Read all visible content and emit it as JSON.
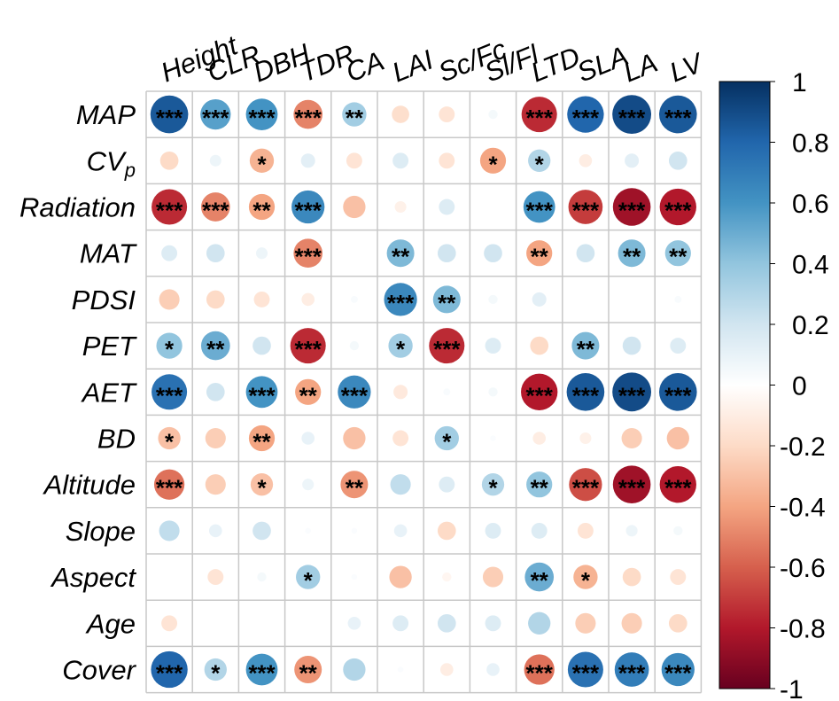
{
  "chart_data": {
    "type": "heatmap",
    "style": "circle-correlation-matrix",
    "columns": [
      "Height",
      "CLR",
      "DBH",
      "TDR",
      "CA",
      "LAI",
      "Sc/Fc",
      "Sl/Fl",
      "LTD",
      "SLA",
      "LA",
      "LV"
    ],
    "rows": [
      "MAP",
      "CVp",
      "Radiation",
      "MAT",
      "PDSI",
      "PET",
      "AET",
      "BD",
      "Altitude",
      "Slope",
      "Aspect",
      "Age",
      "Cover"
    ],
    "row_label_parts": [
      [
        "MAP",
        ""
      ],
      [
        "CV",
        "p"
      ],
      [
        "Radiation",
        ""
      ],
      [
        "MAT",
        ""
      ],
      [
        "PDSI",
        ""
      ],
      [
        "PET",
        ""
      ],
      [
        "AET",
        ""
      ],
      [
        "BD",
        ""
      ],
      [
        "Altitude",
        ""
      ],
      [
        "Slope",
        ""
      ],
      [
        "Aspect",
        ""
      ],
      [
        "Age",
        ""
      ],
      [
        "Cover",
        ""
      ]
    ],
    "values": [
      [
        0.85,
        0.55,
        0.6,
        -0.5,
        0.35,
        -0.18,
        -0.15,
        0.05,
        -0.75,
        0.8,
        0.9,
        0.85
      ],
      [
        -0.2,
        0.08,
        -0.35,
        0.12,
        -0.15,
        0.15,
        -0.15,
        -0.4,
        0.3,
        -0.1,
        0.12,
        0.2
      ],
      [
        -0.75,
        -0.5,
        -0.4,
        0.65,
        -0.3,
        -0.08,
        0.15,
        0.0,
        0.6,
        -0.7,
        -0.85,
        -0.8
      ],
      [
        0.15,
        0.2,
        0.08,
        -0.5,
        0.0,
        0.45,
        0.2,
        0.2,
        -0.4,
        0.2,
        0.45,
        0.4
      ],
      [
        -0.25,
        -0.2,
        -0.15,
        -0.1,
        0.03,
        0.65,
        0.45,
        0.05,
        0.12,
        0.0,
        0.0,
        0.03
      ],
      [
        0.4,
        0.5,
        0.2,
        -0.75,
        0.05,
        0.35,
        -0.75,
        0.15,
        -0.2,
        0.45,
        0.2,
        0.15
      ],
      [
        0.75,
        0.2,
        0.6,
        -0.4,
        0.65,
        -0.12,
        0.03,
        0.05,
        -0.8,
        0.85,
        0.9,
        0.85
      ],
      [
        -0.3,
        -0.25,
        -0.4,
        0.1,
        -0.3,
        -0.15,
        0.35,
        0.02,
        -0.1,
        -0.08,
        -0.25,
        -0.3
      ],
      [
        -0.55,
        -0.25,
        -0.3,
        0.08,
        -0.45,
        0.25,
        0.15,
        0.3,
        0.4,
        -0.65,
        -0.85,
        -0.8
      ],
      [
        0.25,
        0.1,
        0.2,
        0.02,
        0.02,
        0.1,
        -0.2,
        0.15,
        0.15,
        -0.15,
        0.08,
        0.05
      ],
      [
        0.0,
        -0.15,
        0.05,
        0.35,
        0.02,
        -0.3,
        -0.05,
        -0.25,
        0.5,
        -0.35,
        -0.2,
        -0.15
      ],
      [
        -0.15,
        0.0,
        0.0,
        0.0,
        0.1,
        0.15,
        0.2,
        0.15,
        0.3,
        -0.25,
        -0.25,
        -0.2
      ],
      [
        0.8,
        0.3,
        0.6,
        -0.45,
        0.3,
        0.02,
        -0.1,
        0.1,
        -0.55,
        0.75,
        0.7,
        0.65
      ]
    ],
    "significance": [
      [
        "***",
        "***",
        "***",
        "***",
        "**",
        "",
        "",
        "",
        "***",
        "***",
        "***",
        "***"
      ],
      [
        "",
        "",
        "*",
        "",
        "",
        "",
        "",
        "*",
        "*",
        "",
        "",
        ""
      ],
      [
        "***",
        "***",
        "**",
        "***",
        "",
        "",
        "",
        "",
        "***",
        "***",
        "***",
        "***"
      ],
      [
        "",
        "",
        "",
        "***",
        "",
        "**",
        "",
        "",
        "**",
        "",
        "**",
        "**"
      ],
      [
        "",
        "",
        "",
        "",
        "",
        "***",
        "**",
        "",
        "",
        "",
        "",
        ""
      ],
      [
        "*",
        "**",
        "",
        "***",
        "",
        "*",
        "***",
        "",
        "",
        "**",
        "",
        ""
      ],
      [
        "***",
        "",
        "***",
        "**",
        "***",
        "",
        "",
        "",
        "***",
        "***",
        "***",
        "***"
      ],
      [
        "*",
        "",
        "**",
        "",
        "",
        "",
        "*",
        "",
        "",
        "",
        "",
        ""
      ],
      [
        "***",
        "",
        "*",
        "",
        "**",
        "",
        "",
        "*",
        "**",
        "***",
        "***",
        "***"
      ],
      [
        "",
        "",
        "",
        "",
        "",
        "",
        "",
        "",
        "",
        "",
        "",
        ""
      ],
      [
        "",
        "",
        "",
        "*",
        "",
        "",
        "",
        "",
        "**",
        "*",
        "",
        ""
      ],
      [
        "",
        "",
        "",
        "",
        "",
        "",
        "",
        "",
        "",
        "",
        "",
        ""
      ],
      [
        "***",
        "*",
        "***",
        "**",
        "",
        "",
        "",
        "",
        "***",
        "***",
        "***",
        "***"
      ]
    ],
    "colorbar": {
      "range": [
        -1,
        1
      ],
      "tick_values": [
        1,
        0.8,
        0.6,
        0.4,
        0.2,
        0,
        -0.2,
        -0.4,
        -0.6,
        -0.8,
        -1
      ],
      "tick_labels": [
        "1",
        "0.8",
        "0.6",
        "0.4",
        "0.2",
        "0",
        "-0.2",
        "-0.4",
        "-0.6",
        "-0.8",
        "-1"
      ],
      "color_stops": [
        "#67001f",
        "#b2182b",
        "#d6604d",
        "#f4a582",
        "#fddbc7",
        "#ffffff",
        "#d1e5f0",
        "#92c5de",
        "#4393c3",
        "#2166ac",
        "#053061"
      ]
    },
    "legend_position": "right",
    "grid": true
  }
}
